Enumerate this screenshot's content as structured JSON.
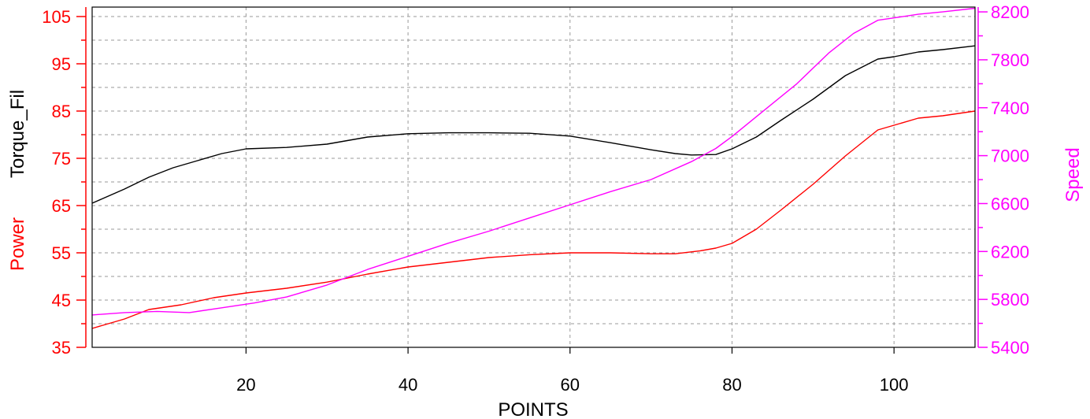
{
  "chart_data": {
    "type": "line",
    "xlabel": "POINTS",
    "left_axis_labels": [
      {
        "text": "Torque_Fil",
        "color": "#000000"
      },
      {
        "text": "Power",
        "color": "#ff0000"
      }
    ],
    "right_axis_label": {
      "text": "Speed",
      "color": "#ff00ff"
    },
    "xlim": [
      1,
      110
    ],
    "ylim_left": [
      35,
      107
    ],
    "ylim_right": [
      5400,
      8240
    ],
    "x_ticks": [
      20,
      40,
      60,
      80,
      100
    ],
    "y_left_ticks": [
      35,
      45,
      55,
      65,
      75,
      85,
      95,
      105
    ],
    "y_right_ticks": [
      5400,
      5800,
      6200,
      6600,
      7000,
      7400,
      7800,
      8200
    ],
    "grid": true,
    "colors": {
      "left_axis": "#ff0000",
      "right_axis": "#ff00ff",
      "torque": "#000000",
      "power": "#ff0000",
      "speed": "#ff00ff"
    },
    "series": [
      {
        "axis": "left",
        "color": "#000000",
        "points": [
          [
            1,
            65.5
          ],
          [
            5,
            68.5
          ],
          [
            8,
            71
          ],
          [
            11,
            73
          ],
          [
            14,
            74.5
          ],
          [
            17,
            76
          ],
          [
            20,
            77
          ],
          [
            25,
            77.3
          ],
          [
            30,
            78
          ],
          [
            35,
            79.5
          ],
          [
            40,
            80.2
          ],
          [
            45,
            80.4
          ],
          [
            50,
            80.4
          ],
          [
            55,
            80.3
          ],
          [
            60,
            79.7
          ],
          [
            65,
            78.3
          ],
          [
            70,
            76.8
          ],
          [
            73,
            76
          ],
          [
            75,
            75.7
          ],
          [
            78,
            75.8
          ],
          [
            80,
            77
          ],
          [
            83,
            79.5
          ],
          [
            86,
            83
          ],
          [
            90,
            87.5
          ],
          [
            94,
            92.5
          ],
          [
            98,
            96
          ],
          [
            100,
            96.5
          ],
          [
            103,
            97.5
          ],
          [
            106,
            98
          ],
          [
            110,
            98.8
          ]
        ]
      },
      {
        "axis": "left",
        "color": "#ff0000",
        "points": [
          [
            1,
            39
          ],
          [
            5,
            41
          ],
          [
            8,
            43
          ],
          [
            12,
            44
          ],
          [
            16,
            45.5
          ],
          [
            20,
            46.5
          ],
          [
            25,
            47.5
          ],
          [
            30,
            48.8
          ],
          [
            35,
            50.5
          ],
          [
            40,
            52
          ],
          [
            45,
            53
          ],
          [
            50,
            54
          ],
          [
            55,
            54.6
          ],
          [
            60,
            55
          ],
          [
            65,
            55
          ],
          [
            70,
            54.8
          ],
          [
            73,
            54.8
          ],
          [
            76,
            55.4
          ],
          [
            78,
            56
          ],
          [
            80,
            57
          ],
          [
            83,
            60
          ],
          [
            86,
            64
          ],
          [
            90,
            69.5
          ],
          [
            94,
            75.5
          ],
          [
            98,
            81
          ],
          [
            100,
            82
          ],
          [
            103,
            83.5
          ],
          [
            106,
            84
          ],
          [
            110,
            85
          ]
        ]
      },
      {
        "axis": "right",
        "color": "#ff00ff",
        "points": [
          [
            1,
            5670
          ],
          [
            5,
            5690
          ],
          [
            9,
            5700
          ],
          [
            13,
            5690
          ],
          [
            17,
            5730
          ],
          [
            21,
            5770
          ],
          [
            25,
            5820
          ],
          [
            30,
            5920
          ],
          [
            35,
            6050
          ],
          [
            40,
            6160
          ],
          [
            45,
            6270
          ],
          [
            50,
            6370
          ],
          [
            55,
            6480
          ],
          [
            60,
            6590
          ],
          [
            65,
            6700
          ],
          [
            70,
            6800
          ],
          [
            75,
            6950
          ],
          [
            78,
            7060
          ],
          [
            80,
            7160
          ],
          [
            84,
            7380
          ],
          [
            88,
            7600
          ],
          [
            92,
            7860
          ],
          [
            95,
            8020
          ],
          [
            98,
            8130
          ],
          [
            100,
            8150
          ],
          [
            103,
            8180
          ],
          [
            106,
            8200
          ],
          [
            110,
            8230
          ]
        ]
      }
    ]
  }
}
